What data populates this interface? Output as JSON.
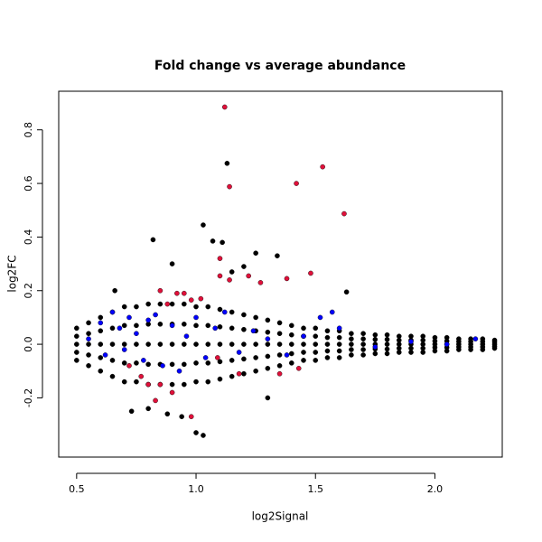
{
  "chart_data": {
    "type": "scatter",
    "title": "Fold change vs average abundance",
    "x_label": "log2Signal",
    "y_label": "log2FC",
    "xlim": [
      0.425,
      2.282
    ],
    "ylim": [
      -0.421,
      0.944
    ],
    "xticks": [
      0.5,
      {
        "value": 1,
        "label": "1.0"
      },
      1.5,
      {
        "value": 2,
        "label": "2.0"
      }
    ],
    "yticks": [
      -0.2,
      {
        "value": 0,
        "label": "0.0"
      },
      0.2,
      0.4,
      0.6,
      0.8
    ],
    "series": [
      {
        "color": "#000000",
        "x": [
          0.5,
          0.5,
          0.5,
          0.5,
          0.5,
          0.55,
          0.55,
          0.55,
          0.55,
          0.55,
          0.6,
          0.6,
          0.6,
          0.6,
          0.6,
          0.65,
          0.65,
          0.65,
          0.65,
          0.65,
          0.7,
          0.7,
          0.7,
          0.7,
          0.7,
          0.75,
          0.75,
          0.75,
          0.75,
          0.75,
          0.8,
          0.8,
          0.8,
          0.8,
          0.8,
          0.85,
          0.85,
          0.85,
          0.85,
          0.85,
          0.9,
          0.9,
          0.9,
          0.9,
          0.9,
          0.95,
          0.95,
          0.95,
          0.95,
          0.95,
          1.0,
          1.0,
          1.0,
          1.0,
          1.0,
          1.05,
          1.05,
          1.05,
          1.05,
          1.05,
          1.1,
          1.1,
          1.1,
          1.1,
          1.1,
          1.15,
          1.15,
          1.15,
          1.15,
          1.15,
          1.2,
          1.2,
          1.2,
          1.2,
          1.2,
          1.25,
          1.25,
          1.25,
          1.25,
          1.25,
          1.3,
          1.3,
          1.3,
          1.3,
          1.3,
          1.35,
          1.35,
          1.35,
          1.35,
          1.35,
          1.4,
          1.4,
          1.4,
          1.4,
          1.4,
          1.45,
          1.45,
          1.45,
          1.45,
          1.45,
          1.5,
          1.5,
          1.5,
          1.5,
          1.5,
          1.55,
          1.55,
          1.55,
          1.55,
          1.55,
          1.6,
          1.6,
          1.6,
          1.6,
          1.6,
          1.65,
          1.65,
          1.65,
          1.65,
          1.65,
          1.7,
          1.7,
          1.7,
          1.7,
          1.7,
          1.75,
          1.75,
          1.75,
          1.75,
          1.75,
          1.8,
          1.8,
          1.8,
          1.8,
          1.8,
          1.85,
          1.85,
          1.85,
          1.85,
          1.85,
          1.9,
          1.9,
          1.9,
          1.9,
          1.9,
          1.95,
          1.95,
          1.95,
          1.95,
          1.95,
          2.0,
          2.0,
          2.0,
          2.0,
          2.0,
          2.05,
          2.05,
          2.05,
          2.05,
          2.05,
          2.1,
          2.1,
          2.1,
          2.1,
          2.1,
          2.15,
          2.15,
          2.15,
          2.15,
          2.15,
          2.2,
          2.2,
          2.2,
          2.2,
          2.2,
          2.25,
          2.25,
          2.25,
          2.25,
          2.25,
          1.13,
          1.03,
          0.82,
          1.07,
          1.11,
          1.34,
          1.25,
          1.63,
          1.0,
          1.03,
          0.94,
          0.8,
          0.88,
          0.73,
          0.66,
          1.2,
          0.9,
          1.15,
          1.3
        ],
        "values": [
          -0.06,
          -0.03,
          0,
          0.03,
          0.06,
          -0.08,
          -0.04,
          0,
          0.04,
          0.08,
          -0.1,
          -0.05,
          0,
          0.05,
          0.1,
          -0.12,
          -0.06,
          0,
          0.06,
          0.12,
          -0.14,
          -0.07,
          0,
          0.07,
          0.14,
          -0.14,
          -0.07,
          0,
          0.07,
          0.14,
          -0.15,
          -0.075,
          0,
          0.075,
          0.15,
          -0.15,
          -0.075,
          0,
          0.075,
          0.15,
          -0.15,
          -0.075,
          0,
          0.075,
          0.15,
          -0.15,
          -0.075,
          0,
          0.075,
          0.15,
          -0.14,
          -0.07,
          0,
          0.07,
          0.14,
          -0.14,
          -0.07,
          0,
          0.07,
          0.14,
          -0.13,
          -0.065,
          0,
          0.065,
          0.13,
          -0.12,
          -0.06,
          0,
          0.06,
          0.12,
          -0.11,
          -0.055,
          0,
          0.055,
          0.11,
          -0.1,
          -0.05,
          0,
          0.05,
          0.1,
          -0.09,
          -0.045,
          0,
          0.045,
          0.09,
          -0.08,
          -0.04,
          0,
          0.04,
          0.08,
          -0.07,
          -0.035,
          0,
          0.035,
          0.07,
          -0.06,
          -0.03,
          0,
          0.03,
          0.06,
          -0.06,
          -0.03,
          0,
          0.03,
          0.06,
          -0.05,
          -0.025,
          0,
          0.025,
          0.05,
          -0.05,
          -0.025,
          0,
          0.025,
          0.05,
          -0.04,
          -0.02,
          0,
          0.02,
          0.04,
          -0.04,
          -0.02,
          0,
          0.02,
          0.04,
          -0.035,
          -0.018,
          0,
          0.018,
          0.035,
          -0.035,
          -0.018,
          0,
          0.018,
          0.035,
          -0.03,
          -0.015,
          0,
          0.015,
          0.03,
          -0.03,
          -0.015,
          0,
          0.015,
          0.03,
          -0.03,
          -0.015,
          0,
          0.015,
          0.03,
          -0.025,
          -0.012,
          0,
          0.012,
          0.025,
          -0.025,
          -0.012,
          0,
          0.012,
          0.025,
          -0.02,
          -0.01,
          0,
          0.01,
          0.02,
          -0.02,
          -0.01,
          0,
          0.01,
          0.02,
          -0.02,
          -0.01,
          0,
          0.01,
          0.02,
          -0.015,
          -0.008,
          0,
          0.008,
          0.015,
          0.675,
          0.445,
          0.39,
          0.385,
          0.38,
          0.33,
          0.34,
          0.195,
          -0.33,
          -0.34,
          -0.27,
          -0.24,
          -0.26,
          -0.25,
          0.2,
          0.29,
          0.3,
          0.27,
          -0.2
        ]
      },
      {
        "color": "#0000ff",
        "x": [
          0.55,
          0.6,
          0.62,
          0.65,
          0.68,
          0.7,
          0.72,
          0.75,
          0.78,
          0.8,
          0.83,
          0.86,
          0.9,
          0.93,
          0.96,
          1.0,
          1.04,
          1.08,
          1.12,
          1.18,
          1.24,
          1.3,
          1.38,
          1.45,
          1.52,
          1.57,
          1.6,
          1.75,
          1.9,
          2.05,
          2.17
        ],
        "values": [
          0.02,
          0.08,
          -0.04,
          0.12,
          0.06,
          -0.02,
          0.1,
          0.04,
          -0.06,
          0.09,
          0.11,
          -0.08,
          0.07,
          -0.1,
          0.03,
          0.1,
          -0.05,
          0.06,
          0.12,
          -0.03,
          0.05,
          0.02,
          -0.04,
          0.03,
          0.1,
          0.12,
          0.06,
          -0.01,
          0.01,
          0,
          0.02
        ]
      },
      {
        "color": "#e0103a",
        "x": [
          1.12,
          1.14,
          1.42,
          1.53,
          1.62,
          1.48,
          1.38,
          1.1,
          1.22,
          1.1,
          0.98,
          1.02,
          0.92,
          0.95,
          0.85,
          1.14,
          1.27,
          0.88,
          0.98,
          0.83,
          0.85,
          0.8,
          0.9,
          0.72,
          0.77,
          1.18,
          1.43,
          1.35,
          1.09
        ],
        "values": [
          0.885,
          0.588,
          0.6,
          0.662,
          0.487,
          0.265,
          0.245,
          0.32,
          0.255,
          0.255,
          0.165,
          0.17,
          0.19,
          0.19,
          0.2,
          0.24,
          0.23,
          0.15,
          -0.27,
          -0.21,
          -0.15,
          -0.15,
          -0.18,
          -0.08,
          -0.12,
          -0.11,
          -0.09,
          -0.11,
          -0.05
        ]
      }
    ]
  }
}
